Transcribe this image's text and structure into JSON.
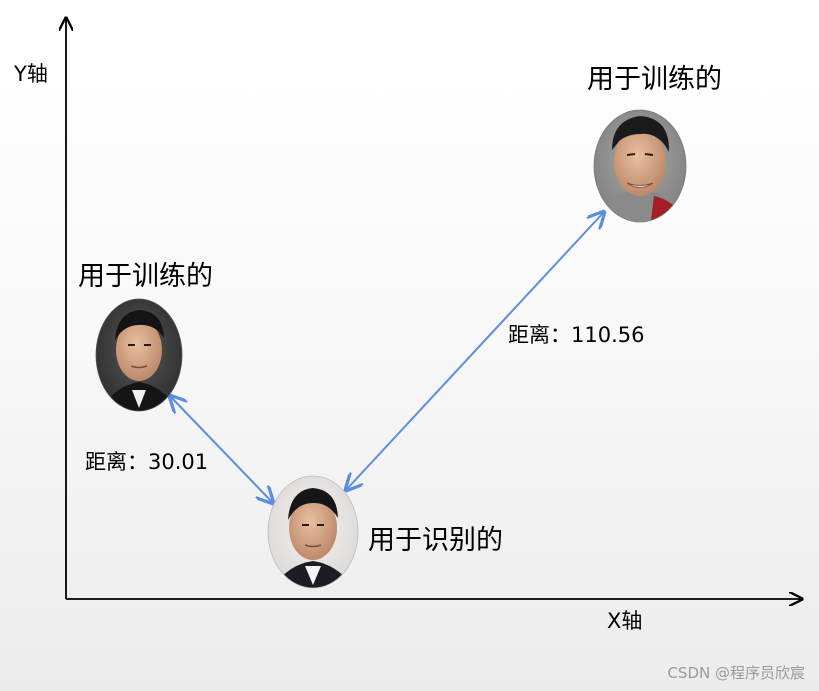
{
  "axes": {
    "y_label": "Y轴",
    "x_label": "X轴"
  },
  "faces": {
    "train_right_label": "用于训练的",
    "train_left_label": "用于训练的",
    "identify_label": "用于识别的"
  },
  "distances": {
    "far_label": "距离：110.56",
    "near_label": "距离：30.01"
  },
  "watermark": "CSDN @程序员欣宸",
  "colors": {
    "arrow": "#5b8ee0",
    "axis": "#000000"
  }
}
